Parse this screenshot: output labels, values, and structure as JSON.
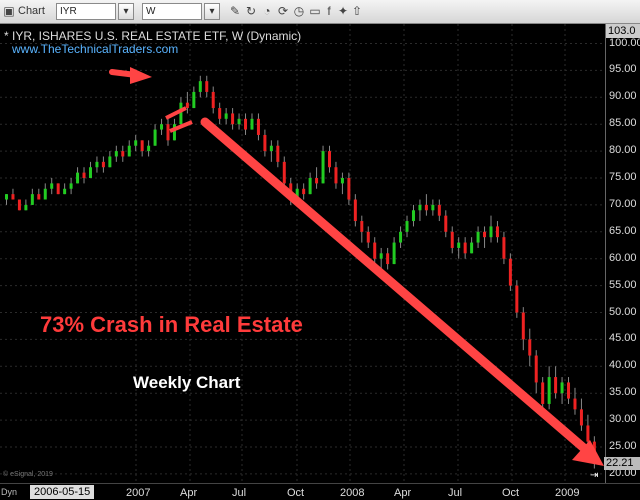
{
  "toolbar": {
    "chart_label": "Chart",
    "symbol": "IYR",
    "interval": "W"
  },
  "title": "* IYR, ISHARES U.S. REAL ESTATE ETF, W (Dynamic)",
  "website": "www.TheTechnicalTraders.com",
  "annotations": {
    "crash": "73% Crash in Real Estate",
    "weekly": "Weekly Chart"
  },
  "credit": "© eSignal, 2019",
  "bottom": {
    "dyn_label": "Dyn",
    "first_date": "2006-05-15",
    "x_ticks": [
      "2007",
      "Apr",
      "Jul",
      "Oct",
      "2008",
      "Apr",
      "Jul",
      "Oct",
      "2009"
    ]
  },
  "price_axis": {
    "top_price": "103.0",
    "last_price": "22.21",
    "ticks": [
      "100.00",
      "95.00",
      "90.00",
      "85.00",
      "80.00",
      "75.00",
      "70.00",
      "65.00",
      "60.00",
      "55.00",
      "50.00",
      "45.00",
      "40.00",
      "35.00",
      "30.00",
      "25.00",
      "20.00"
    ]
  },
  "colors": {
    "up": "#22cc22",
    "down": "#ee2222",
    "arrow": "#ff4444",
    "background": "#000000"
  },
  "chart_data": {
    "type": "candlestick",
    "ylim": [
      20,
      101
    ],
    "candles": [
      [
        0,
        71,
        72,
        70,
        72
      ],
      [
        1,
        72,
        73,
        71,
        71
      ],
      [
        2,
        71,
        71,
        69,
        69
      ],
      [
        3,
        69,
        71,
        69,
        70
      ],
      [
        4,
        70,
        73,
        70,
        72
      ],
      [
        5,
        72,
        73,
        71,
        71
      ],
      [
        6,
        71,
        74,
        71,
        73
      ],
      [
        7,
        73,
        75,
        72,
        74
      ],
      [
        8,
        74,
        74,
        72,
        72
      ],
      [
        9,
        72,
        74,
        72,
        73
      ],
      [
        10,
        73,
        75,
        72,
        74
      ],
      [
        11,
        74,
        77,
        74,
        76
      ],
      [
        12,
        76,
        77,
        74,
        75
      ],
      [
        13,
        75,
        78,
        75,
        77
      ],
      [
        14,
        77,
        79,
        76,
        78
      ],
      [
        15,
        78,
        79,
        76,
        77
      ],
      [
        16,
        77,
        80,
        77,
        79
      ],
      [
        17,
        79,
        81,
        78,
        80
      ],
      [
        18,
        80,
        81,
        78,
        79
      ],
      [
        19,
        79,
        82,
        79,
        81
      ],
      [
        20,
        81,
        83,
        80,
        82
      ],
      [
        21,
        82,
        82,
        79,
        80
      ],
      [
        22,
        80,
        82,
        79,
        81
      ],
      [
        23,
        81,
        85,
        81,
        84
      ],
      [
        24,
        84,
        86,
        83,
        85
      ],
      [
        25,
        85,
        86,
        81,
        82
      ],
      [
        26,
        82,
        86,
        82,
        85
      ],
      [
        27,
        85,
        90,
        85,
        89
      ],
      [
        28,
        89,
        91,
        87,
        88
      ],
      [
        29,
        88,
        92,
        88,
        91
      ],
      [
        30,
        91,
        94,
        90,
        93
      ],
      [
        31,
        93,
        94,
        90,
        91
      ],
      [
        32,
        91,
        92,
        87,
        88
      ],
      [
        33,
        88,
        89,
        85,
        86
      ],
      [
        34,
        86,
        88,
        85,
        87
      ],
      [
        35,
        87,
        88,
        84,
        85
      ],
      [
        36,
        85,
        87,
        84,
        86
      ],
      [
        37,
        86,
        87,
        83,
        84
      ],
      [
        38,
        84,
        87,
        84,
        86
      ],
      [
        39,
        86,
        87,
        82,
        83
      ],
      [
        40,
        83,
        84,
        79,
        80
      ],
      [
        41,
        80,
        82,
        78,
        81
      ],
      [
        42,
        81,
        82,
        77,
        78
      ],
      [
        43,
        78,
        79,
        73,
        74
      ],
      [
        44,
        74,
        75,
        70,
        71
      ],
      [
        45,
        71,
        74,
        70,
        73
      ],
      [
        46,
        73,
        74,
        71,
        72
      ],
      [
        47,
        72,
        76,
        72,
        75
      ],
      [
        48,
        75,
        77,
        73,
        74
      ],
      [
        49,
        74,
        81,
        74,
        80
      ],
      [
        50,
        80,
        81,
        76,
        77
      ],
      [
        51,
        77,
        78,
        73,
        74
      ],
      [
        52,
        74,
        76,
        72,
        75
      ],
      [
        53,
        75,
        76,
        70,
        71
      ],
      [
        54,
        71,
        72,
        66,
        67
      ],
      [
        55,
        67,
        68,
        63,
        65
      ],
      [
        56,
        65,
        66,
        62,
        63
      ],
      [
        57,
        63,
        64,
        59,
        60
      ],
      [
        58,
        60,
        62,
        58,
        61
      ],
      [
        59,
        61,
        62,
        58,
        59
      ],
      [
        60,
        59,
        64,
        59,
        63
      ],
      [
        61,
        63,
        66,
        62,
        65
      ],
      [
        62,
        65,
        68,
        64,
        67
      ],
      [
        63,
        67,
        70,
        66,
        69
      ],
      [
        64,
        69,
        71,
        67,
        70
      ],
      [
        65,
        70,
        72,
        68,
        69
      ],
      [
        66,
        69,
        71,
        68,
        70
      ],
      [
        67,
        70,
        71,
        67,
        68
      ],
      [
        68,
        68,
        69,
        64,
        65
      ],
      [
        69,
        65,
        66,
        61,
        62
      ],
      [
        70,
        62,
        64,
        60,
        63
      ],
      [
        71,
        63,
        64,
        60,
        61
      ],
      [
        72,
        61,
        64,
        61,
        63
      ],
      [
        73,
        63,
        66,
        62,
        65
      ],
      [
        74,
        65,
        66,
        62,
        64
      ],
      [
        75,
        64,
        68,
        63,
        66
      ],
      [
        76,
        66,
        67,
        63,
        64
      ],
      [
        77,
        64,
        65,
        59,
        60
      ],
      [
        78,
        60,
        61,
        54,
        55
      ],
      [
        79,
        55,
        56,
        49,
        50
      ],
      [
        80,
        50,
        51,
        43,
        45
      ],
      [
        81,
        45,
        47,
        40,
        42
      ],
      [
        82,
        42,
        43,
        35,
        37
      ],
      [
        83,
        37,
        38,
        31,
        33
      ],
      [
        84,
        33,
        40,
        32,
        38
      ],
      [
        85,
        38,
        40,
        34,
        35
      ],
      [
        86,
        35,
        38,
        33,
        37
      ],
      [
        87,
        37,
        38,
        33,
        34
      ],
      [
        88,
        34,
        36,
        31,
        32
      ],
      [
        89,
        32,
        34,
        28,
        29
      ],
      [
        90,
        29,
        31,
        25,
        26
      ],
      [
        91,
        26,
        27,
        21,
        22
      ]
    ]
  }
}
